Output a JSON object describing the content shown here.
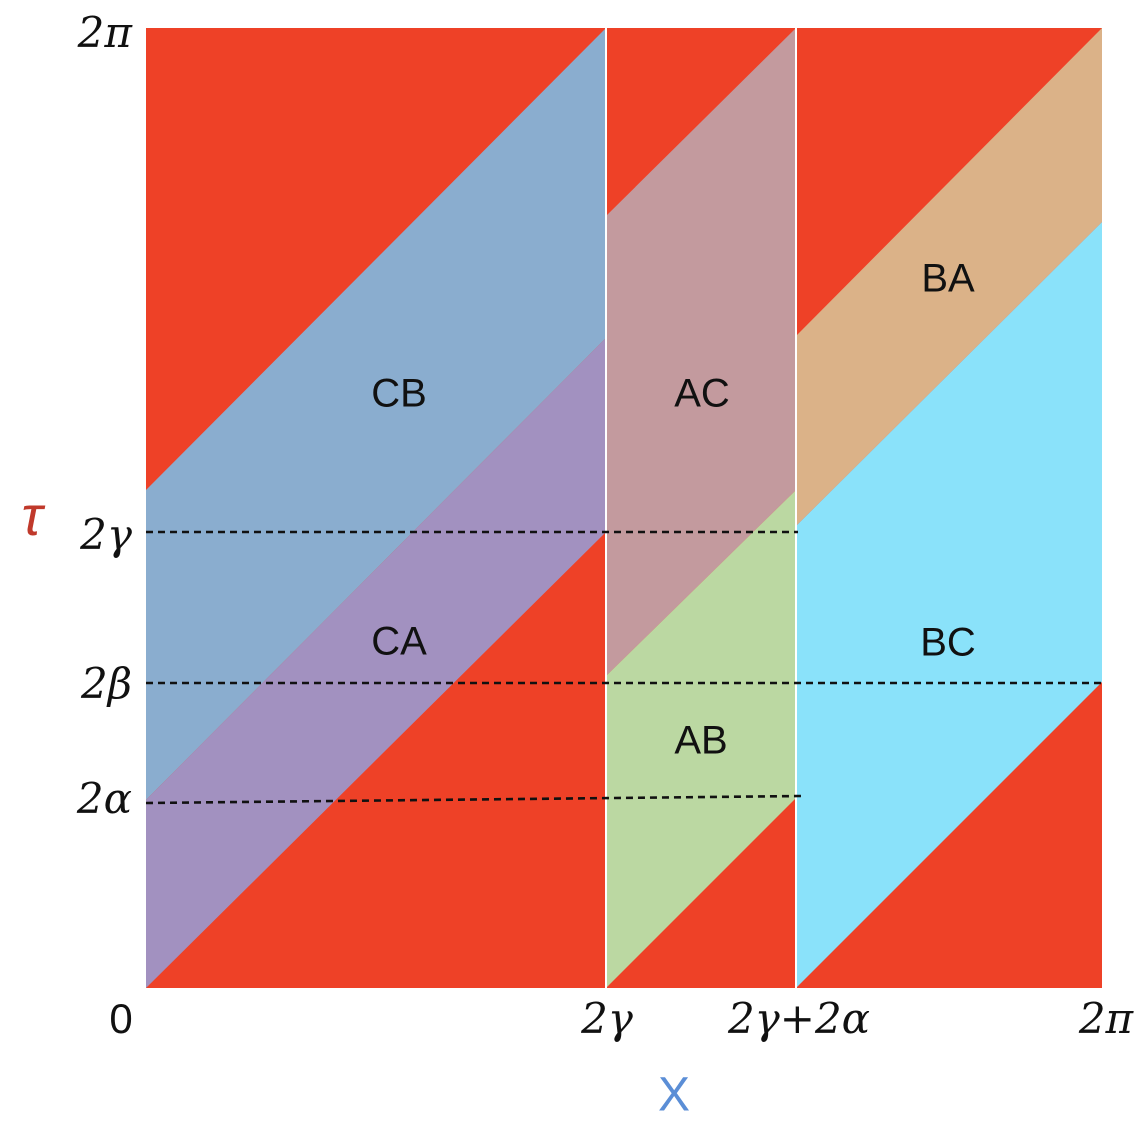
{
  "axes": {
    "x_title": "X",
    "y_title": "τ",
    "x_title_color": "#5b8ed6",
    "y_title_color": "#c0392b",
    "x_ticks": {
      "zero": "0",
      "gamma": "2γ",
      "gamma_plus_alpha": "2γ+2α",
      "two_pi": "2π"
    },
    "y_ticks": {
      "two_pi": "2π",
      "gamma": "2γ",
      "beta": "2β",
      "alpha": "2α"
    }
  },
  "regions": {
    "cb": "CB",
    "ca": "CA",
    "ac": "AC",
    "ab": "AB",
    "ba": "BA",
    "bc": "BC"
  },
  "colors": {
    "background": "#ee4127",
    "cb": "#8aadcf",
    "ca": "#a291c0",
    "ac": "#c39a9e",
    "ab": "#bbd8a2",
    "ba": "#dbb288",
    "bc": "#8ae2fa",
    "guides": "#111111"
  }
}
